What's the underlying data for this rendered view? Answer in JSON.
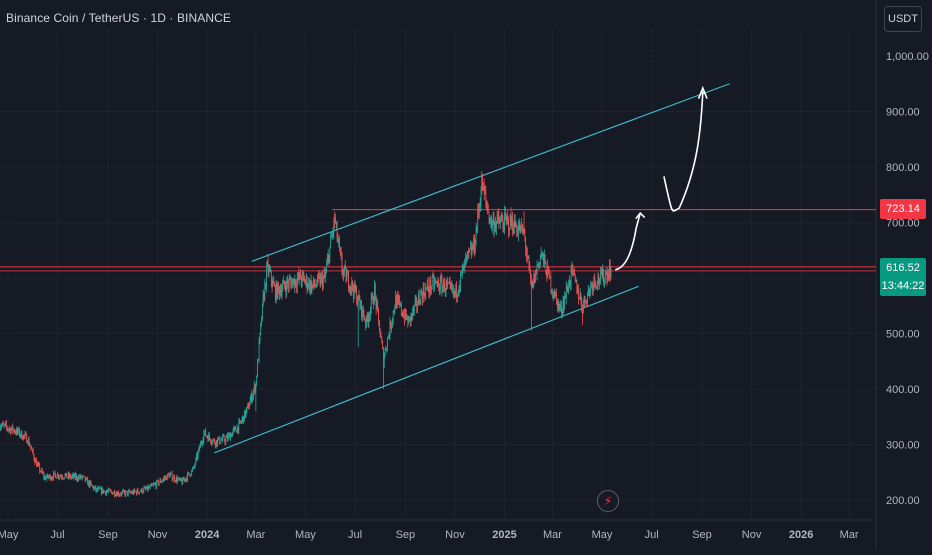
{
  "header": {
    "symbol_title": "Binance Coin / TetherUS · 1D · BINANCE",
    "currency_button": "USDT"
  },
  "colors": {
    "background": "#161a25",
    "grid": "#1f2330",
    "axis_text": "#b2b5be",
    "candle_up": "#26a69a",
    "candle_down": "#ef5350",
    "channel": "#3fb6c6",
    "resistance": "#f23645",
    "current_label": "#089981",
    "annotation": "#ffffff"
  },
  "chart_data": {
    "type": "candlestick",
    "title": "Binance Coin / TetherUS · 1D · BINANCE",
    "y_axis": {
      "ticks": [
        "1,000.00",
        "900.00",
        "800.00",
        "700.00",
        "500.00",
        "400.00",
        "300.00",
        "200.00"
      ],
      "tick_values": [
        1000,
        900,
        800,
        700,
        500,
        400,
        300,
        200
      ],
      "range": [
        170,
        1050
      ],
      "position": "right"
    },
    "x_axis": {
      "ticks": [
        "May",
        "Jul",
        "Sep",
        "Nov",
        "2024",
        "Mar",
        "May",
        "Jul",
        "Sep",
        "Nov",
        "2025",
        "Mar",
        "May",
        "Jul",
        "Sep",
        "Nov",
        "2026",
        "Mar"
      ],
      "tick_dates": [
        "2023-05-01",
        "2023-07-01",
        "2023-09-01",
        "2023-11-01",
        "2024-01-01",
        "2024-03-01",
        "2024-05-01",
        "2024-07-01",
        "2024-09-01",
        "2024-11-01",
        "2025-01-01",
        "2025-03-01",
        "2025-05-01",
        "2025-07-01",
        "2025-09-01",
        "2025-11-01",
        "2026-01-01",
        "2026-03-01"
      ],
      "bold_ticks": [
        "2024",
        "2025",
        "2026"
      ]
    },
    "grid": true,
    "price_path": [
      [
        "2023-04-20",
        335
      ],
      [
        "2023-05-10",
        325
      ],
      [
        "2023-05-25",
        310
      ],
      [
        "2023-06-05",
        265
      ],
      [
        "2023-06-15",
        240
      ],
      [
        "2023-07-01",
        245
      ],
      [
        "2023-07-15",
        242
      ],
      [
        "2023-08-01",
        240
      ],
      [
        "2023-08-17",
        218
      ],
      [
        "2023-09-01",
        215
      ],
      [
        "2023-09-15",
        212
      ],
      [
        "2023-10-01",
        213
      ],
      [
        "2023-10-20",
        220
      ],
      [
        "2023-11-01",
        230
      ],
      [
        "2023-11-15",
        245
      ],
      [
        "2023-12-01",
        232
      ],
      [
        "2023-12-15",
        255
      ],
      [
        "2023-12-28",
        320
      ],
      [
        "2024-01-10",
        305
      ],
      [
        "2024-01-25",
        310
      ],
      [
        "2024-02-10",
        335
      ],
      [
        "2024-02-20",
        365
      ],
      [
        "2024-03-01",
        410
      ],
      [
        "2024-03-10",
        560
      ],
      [
        "2024-03-15",
        620
      ],
      [
        "2024-03-25",
        575
      ],
      [
        "2024-04-10",
        590
      ],
      [
        "2024-04-25",
        600
      ],
      [
        "2024-05-10",
        585
      ],
      [
        "2024-05-25",
        600
      ],
      [
        "2024-06-06",
        705
      ],
      [
        "2024-06-15",
        615
      ],
      [
        "2024-07-01",
        575
      ],
      [
        "2024-07-15",
        520
      ],
      [
        "2024-07-25",
        575
      ],
      [
        "2024-08-05",
        455
      ],
      [
        "2024-08-20",
        560
      ],
      [
        "2024-09-05",
        520
      ],
      [
        "2024-09-20",
        570
      ],
      [
        "2024-10-05",
        590
      ],
      [
        "2024-10-20",
        585
      ],
      [
        "2024-11-01",
        570
      ],
      [
        "2024-11-15",
        630
      ],
      [
        "2024-11-25",
        660
      ],
      [
        "2024-12-04",
        770
      ],
      [
        "2024-12-15",
        700
      ],
      [
        "2024-12-28",
        700
      ],
      [
        "2025-01-10",
        700
      ],
      [
        "2025-01-25",
        680
      ],
      [
        "2025-02-03",
        580
      ],
      [
        "2025-02-15",
        645
      ],
      [
        "2025-03-01",
        580
      ],
      [
        "2025-03-11",
        540
      ],
      [
        "2025-03-25",
        610
      ],
      [
        "2025-04-07",
        550
      ],
      [
        "2025-04-20",
        595
      ],
      [
        "2025-05-01",
        600
      ],
      [
        "2025-05-12",
        616.52
      ]
    ],
    "last_price": "616.52",
    "countdown": "13:44:22",
    "resistance_level": "723.14",
    "resistance_value": 723.14,
    "support_level_value": 620,
    "channel_upper": [
      [
        "2024-02-25",
        630
      ],
      [
        "2025-10-05",
        950
      ]
    ],
    "channel_lower": [
      [
        "2024-01-10",
        285
      ],
      [
        "2025-06-15",
        585
      ]
    ],
    "channel_upper_parallel_start": [
      [
        "2024-03-01",
        650
      ]
    ],
    "annotation_path": [
      [
        "2025-05-18",
        615
      ],
      [
        "2025-05-28",
        625
      ],
      [
        "2025-06-12",
        690
      ],
      [
        "2025-06-17",
        717
      ],
      [
        "2025-07-20",
        782
      ],
      [
        "2025-08-04",
        726
      ],
      [
        "2025-09-02",
        935
      ],
      [
        "2025-08-28",
        944
      ]
    ]
  },
  "footer": {
    "lightning_icon": "lightning-icon"
  }
}
